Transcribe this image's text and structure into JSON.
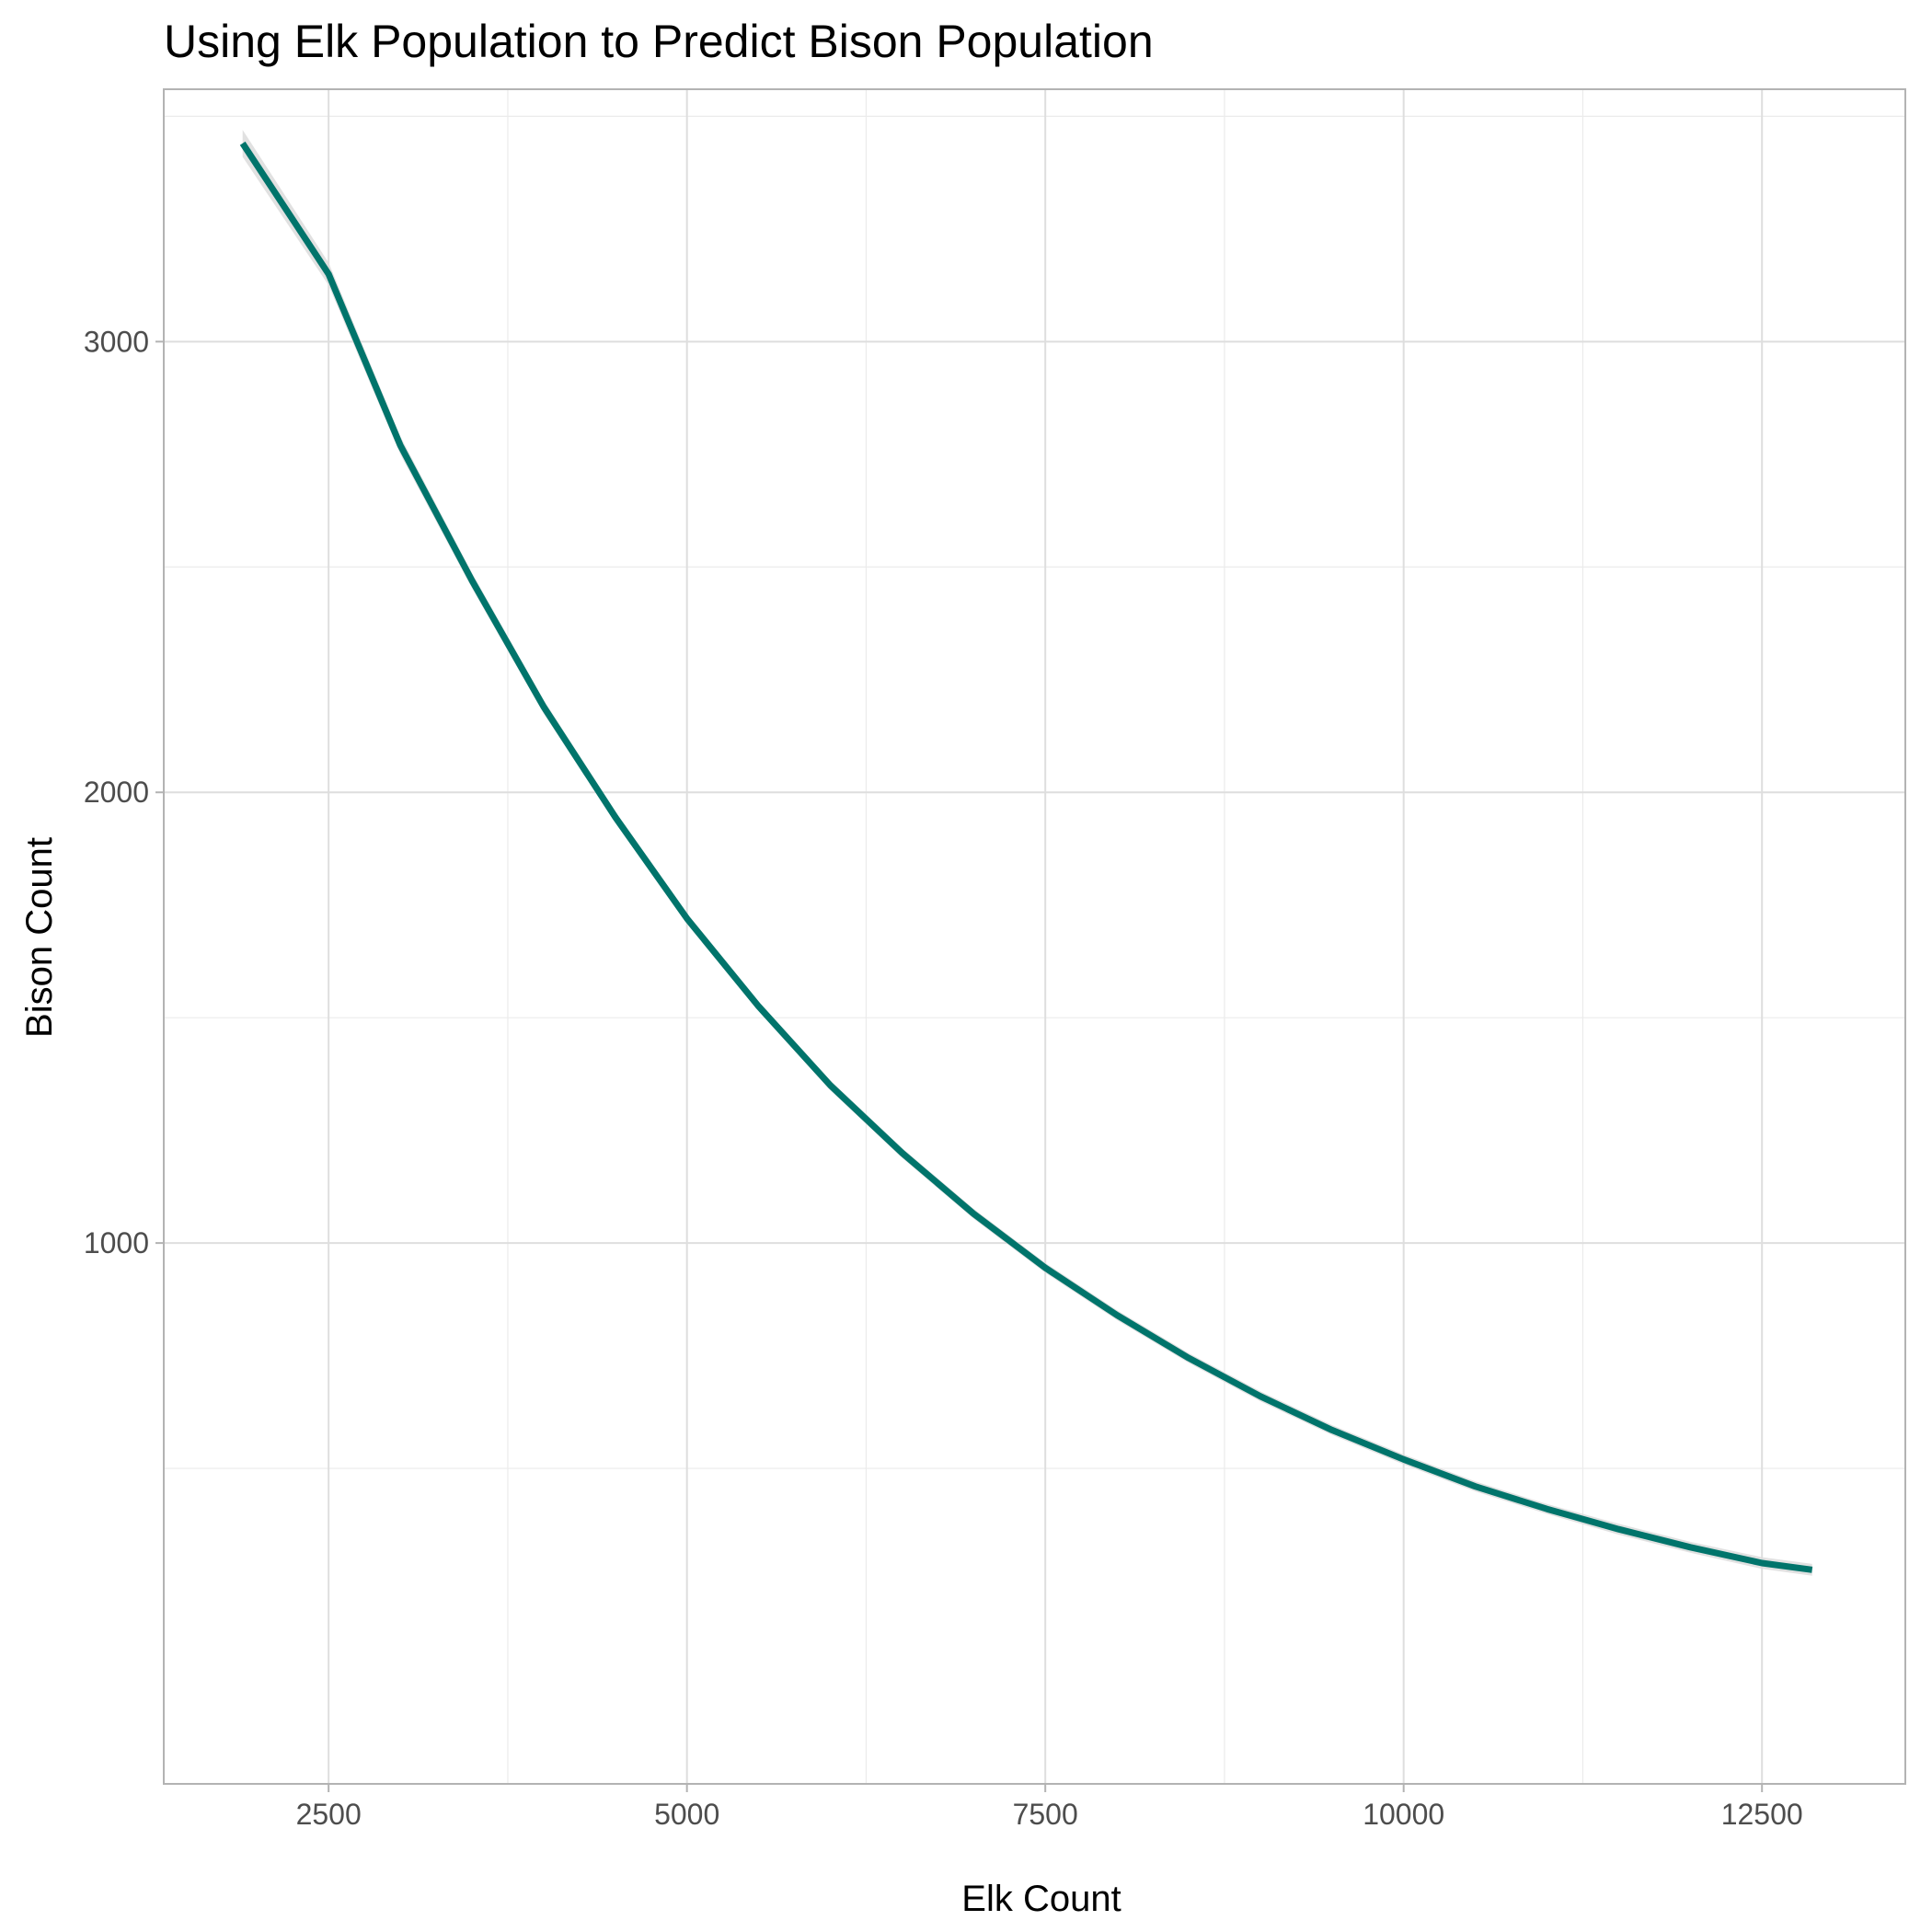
{
  "chart_data": {
    "type": "line",
    "title": "Using Elk Population to Predict Bison Population",
    "xlabel": "Elk Count",
    "ylabel": "Bison Count",
    "xlim": [
      1350,
      13500
    ],
    "ylim": [
      -200,
      3560
    ],
    "x_ticks": [
      2500,
      5000,
      7500,
      10000,
      12500
    ],
    "y_ticks": [
      1000,
      2000,
      3000
    ],
    "x_tick_labels": [
      "2500",
      "5000",
      "7500",
      "10000",
      "12500"
    ],
    "y_tick_labels": [
      "1000",
      "2000",
      "3000"
    ],
    "grid": true,
    "legend": "none",
    "series": [
      {
        "line_color": "#00746b",
        "band_color": "#dcdcdc",
        "x": [
          1900,
          2500,
          3000,
          3500,
          4000,
          4500,
          5000,
          5500,
          6000,
          6500,
          7000,
          7500,
          8000,
          8500,
          9000,
          9500,
          10000,
          10500,
          11000,
          11500,
          12000,
          12500,
          12850
        ],
        "y": [
          3440,
          3150,
          2770,
          2470,
          2190,
          1945,
          1720,
          1525,
          1350,
          1200,
          1065,
          945,
          840,
          745,
          660,
          585,
          520,
          460,
          410,
          365,
          325,
          290,
          275
        ],
        "ci_halfwidth": [
          30,
          25,
          20,
          17,
          15,
          13,
          12,
          11,
          11,
          11,
          11,
          11,
          11,
          11,
          11,
          11,
          11,
          11,
          11,
          12,
          12,
          13,
          13
        ]
      }
    ]
  }
}
